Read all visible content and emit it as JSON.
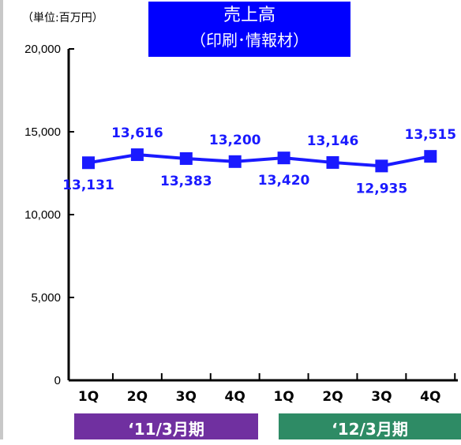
{
  "unit_label": "（単位:百万円）",
  "title_line1": "売上高",
  "title_line2": "（印刷･情報材）",
  "periods": [
    {
      "label": "‘11/3月期"
    },
    {
      "label": "‘12/3月期"
    }
  ],
  "colors": {
    "title_bg": "#0000ff",
    "series": "#1a1aff",
    "period_1": "#7030a0",
    "period_2": "#2e8b65"
  },
  "chart_data": {
    "type": "line",
    "categories": [
      "1Q",
      "2Q",
      "3Q",
      "4Q",
      "1Q",
      "2Q",
      "3Q",
      "4Q"
    ],
    "series": [
      {
        "values": [
          13131,
          13616,
          13383,
          13200,
          13420,
          13146,
          12935,
          13515
        ]
      }
    ],
    "data_labels": [
      "13,131",
      "13,616",
      "13,383",
      "13,200",
      "13,420",
      "13,146",
      "12,935",
      "13,515"
    ],
    "yticks": [
      "0",
      "5,000",
      "10,000",
      "15,000",
      "20,000"
    ],
    "ylim": [
      0,
      20000
    ],
    "grid": false,
    "marker": "square",
    "title": "売上高 （印刷･情報材）"
  }
}
